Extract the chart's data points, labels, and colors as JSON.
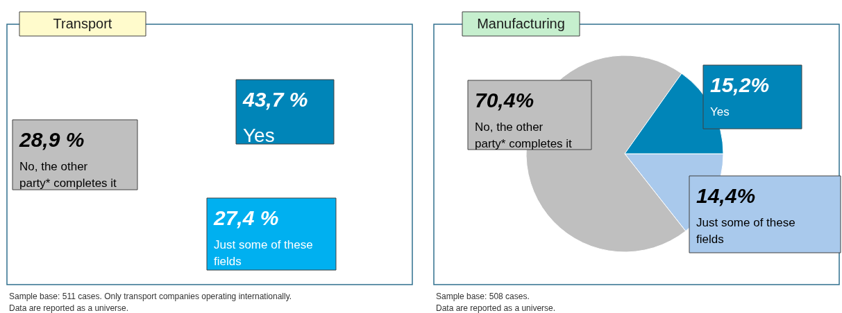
{
  "chart_data": [
    {
      "type": "other",
      "title": "Transport",
      "categories": [
        "Yes",
        "No, the other party* completes it",
        "Just some of these fields"
      ],
      "values": [
        43.7,
        28.9,
        27.4
      ],
      "colors": [
        "#0085b8",
        "#bfbfbf",
        "#00b0f0"
      ],
      "value_labels": [
        "43,7 %",
        "28,9 %",
        "27,4 %"
      ],
      "annotations": [
        "Sample base: 511 cases. Only transport companies operating internationally.",
        "Data are reported as a universe."
      ]
    },
    {
      "type": "pie",
      "title": "Manufacturing",
      "categories": [
        "Just some of these fields",
        "No, the other party* completes it",
        "Yes"
      ],
      "values": [
        14.4,
        70.4,
        15.2
      ],
      "colors": [
        "#a9c9ec",
        "#bfbfbf",
        "#0085b8"
      ],
      "value_labels": [
        "14,4%",
        "70,4%",
        "15,2%"
      ],
      "annotations": [
        "Sample base: 508 cases.",
        "Data are reported as a universe."
      ]
    }
  ]
}
